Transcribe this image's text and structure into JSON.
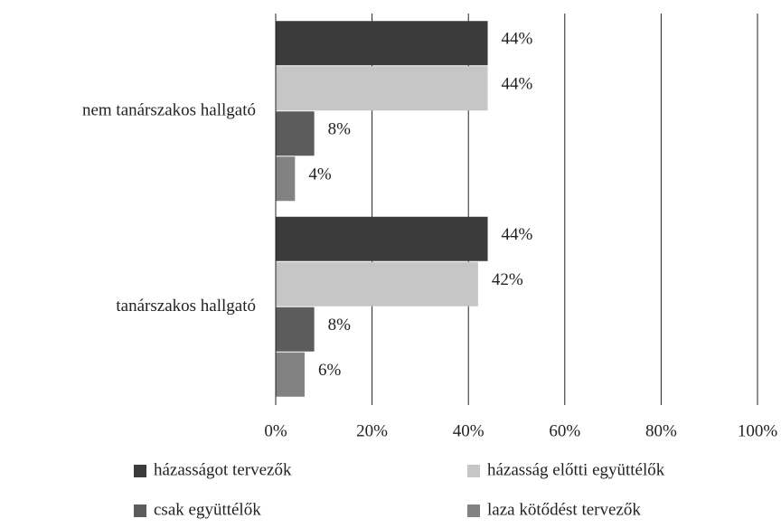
{
  "chart_data": {
    "type": "hbar",
    "categories": [
      "nem tanárszakos hallgató",
      "tanárszakos hallgató"
    ],
    "series": [
      {
        "name": "házasságot tervezők",
        "color": "#3b3b3b",
        "values": [
          44,
          44
        ],
        "value_labels": [
          "44%",
          "44%"
        ]
      },
      {
        "name": "házasság előtti együttélők",
        "color": "#c6c6c6",
        "values": [
          44,
          42
        ],
        "value_labels": [
          "44%",
          "42%"
        ]
      },
      {
        "name": "csak együttélők",
        "color": "#5c5c5c",
        "values": [
          8,
          8
        ],
        "value_labels": [
          "8%",
          "8%"
        ]
      },
      {
        "name": "laza kötődést tervezők",
        "color": "#828282",
        "values": [
          4,
          6
        ],
        "value_labels": [
          "4%",
          "6%"
        ]
      }
    ],
    "xlim": [
      0,
      100
    ],
    "xticks": [
      {
        "value": 0,
        "label": "0%"
      },
      {
        "value": 20,
        "label": "20%"
      },
      {
        "value": 40,
        "label": "40%"
      },
      {
        "value": 60,
        "label": "60%"
      },
      {
        "value": 80,
        "label": "80%"
      },
      {
        "value": 100,
        "label": "100%"
      }
    ],
    "grid": true
  }
}
